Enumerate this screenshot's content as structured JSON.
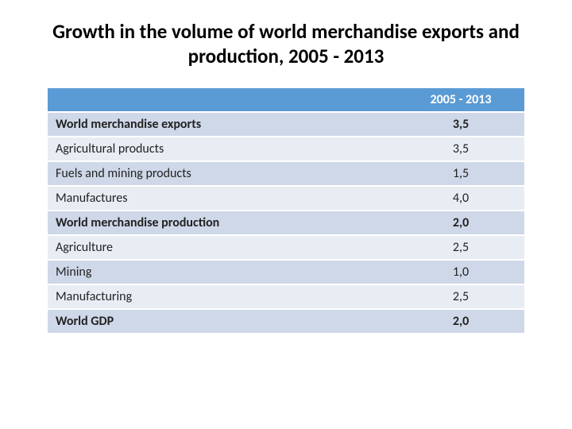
{
  "title": "Growth in the volume of world merchandise exports and production, 2005 - 2013",
  "table": {
    "header": {
      "col1": "",
      "col2": "2005 - 2013"
    },
    "rows": [
      {
        "label": "World merchandise exports",
        "value": "3,5",
        "bold": true
      },
      {
        "label": "Agricultural products",
        "value": "3,5",
        "bold": false
      },
      {
        "label": "Fuels and mining products",
        "value": "1,5",
        "bold": false
      },
      {
        "label": "Manufactures",
        "value": "4,0",
        "bold": false
      },
      {
        "label": "World merchandise  production",
        "value": "2,0",
        "bold": true
      },
      {
        "label": "Agriculture",
        "value": "2,5",
        "bold": false
      },
      {
        "label": "Mining",
        "value": "1,0",
        "bold": false
      },
      {
        "label": "Manufacturing",
        "value": "2,5",
        "bold": false
      },
      {
        "label": "World GDP",
        "value": "2,0",
        "bold": true
      }
    ],
    "colors": {
      "header_bg": "#5b9bd5",
      "header_text": "#ffffff",
      "row_odd_bg": "#cfd8e8",
      "row_even_bg": "#e8edf4",
      "text": "#222222"
    }
  }
}
